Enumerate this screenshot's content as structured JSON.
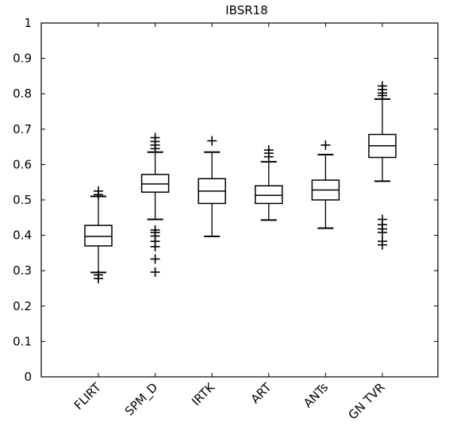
{
  "chart_data": {
    "type": "box",
    "title": "IBSR18",
    "xlabel": "",
    "ylabel": "",
    "ylim": [
      0,
      1
    ],
    "yticks": [
      "0",
      "0.1",
      "0.2",
      "0.3",
      "0.4",
      "0.5",
      "0.6",
      "0.7",
      "0.8",
      "0.9",
      "1"
    ],
    "categories": [
      "FLIRT",
      "SPM_D",
      "IRTK",
      "ART",
      "ANTs",
      "GN TVR"
    ],
    "series": [
      {
        "boxes": [
          {
            "whisker_low": 0.295,
            "q1": 0.37,
            "median": 0.397,
            "q3": 0.428,
            "whisker_high": 0.51,
            "outliers": [
              0.278,
              0.288,
              0.515,
              0.525
            ]
          },
          {
            "whisker_low": 0.445,
            "q1": 0.522,
            "median": 0.545,
            "q3": 0.572,
            "whisker_high": 0.635,
            "outliers": [
              0.296,
              0.333,
              0.368,
              0.383,
              0.398,
              0.408,
              0.415,
              0.645,
              0.655,
              0.665,
              0.676
            ]
          },
          {
            "whisker_low": 0.397,
            "q1": 0.49,
            "median": 0.525,
            "q3": 0.56,
            "whisker_high": 0.635,
            "outliers": [
              0.667
            ]
          },
          {
            "whisker_low": 0.443,
            "q1": 0.49,
            "median": 0.513,
            "q3": 0.54,
            "whisker_high": 0.608,
            "outliers": [
              0.622,
              0.632,
              0.641
            ]
          },
          {
            "whisker_low": 0.42,
            "q1": 0.5,
            "median": 0.528,
            "q3": 0.556,
            "whisker_high": 0.628,
            "outliers": [
              0.655
            ]
          },
          {
            "whisker_low": 0.553,
            "q1": 0.62,
            "median": 0.653,
            "q3": 0.685,
            "whisker_high": 0.785,
            "outliers": [
              0.373,
              0.383,
              0.408,
              0.418,
              0.43,
              0.445,
              0.795,
              0.802,
              0.812,
              0.822
            ]
          }
        ]
      }
    ],
    "grid": false,
    "legend": "none"
  }
}
